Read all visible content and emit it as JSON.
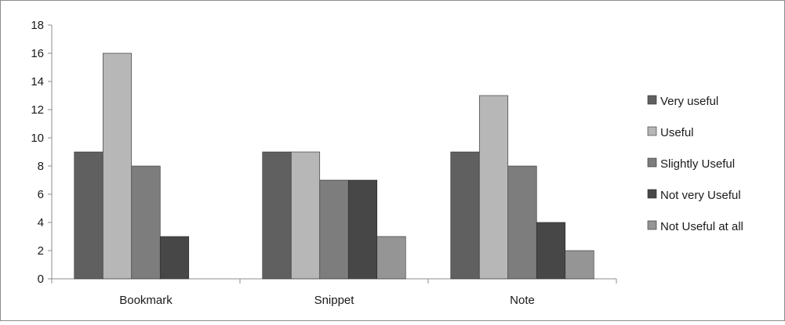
{
  "chart_data": {
    "type": "bar",
    "title": "",
    "xlabel": "",
    "ylabel": "",
    "categories": [
      "Bookmark",
      "Snippet",
      "Note"
    ],
    "ylim": [
      0,
      18
    ],
    "yticks": [
      0,
      2,
      4,
      6,
      8,
      10,
      12,
      14,
      16,
      18
    ],
    "grid": false,
    "legend_position": "right",
    "series": [
      {
        "name": "Very useful",
        "color": "#606060",
        "values": [
          9,
          9,
          9
        ]
      },
      {
        "name": "Useful",
        "color": "#b7b7b7",
        "values": [
          16,
          9,
          13
        ]
      },
      {
        "name": "Slightly Useful",
        "color": "#7d7d7d",
        "values": [
          8,
          7,
          8
        ]
      },
      {
        "name": "Not very Useful",
        "color": "#474747",
        "values": [
          3,
          7,
          4
        ]
      },
      {
        "name": "Not Useful at all",
        "color": "#959595",
        "values": [
          0,
          3,
          2
        ]
      }
    ]
  }
}
